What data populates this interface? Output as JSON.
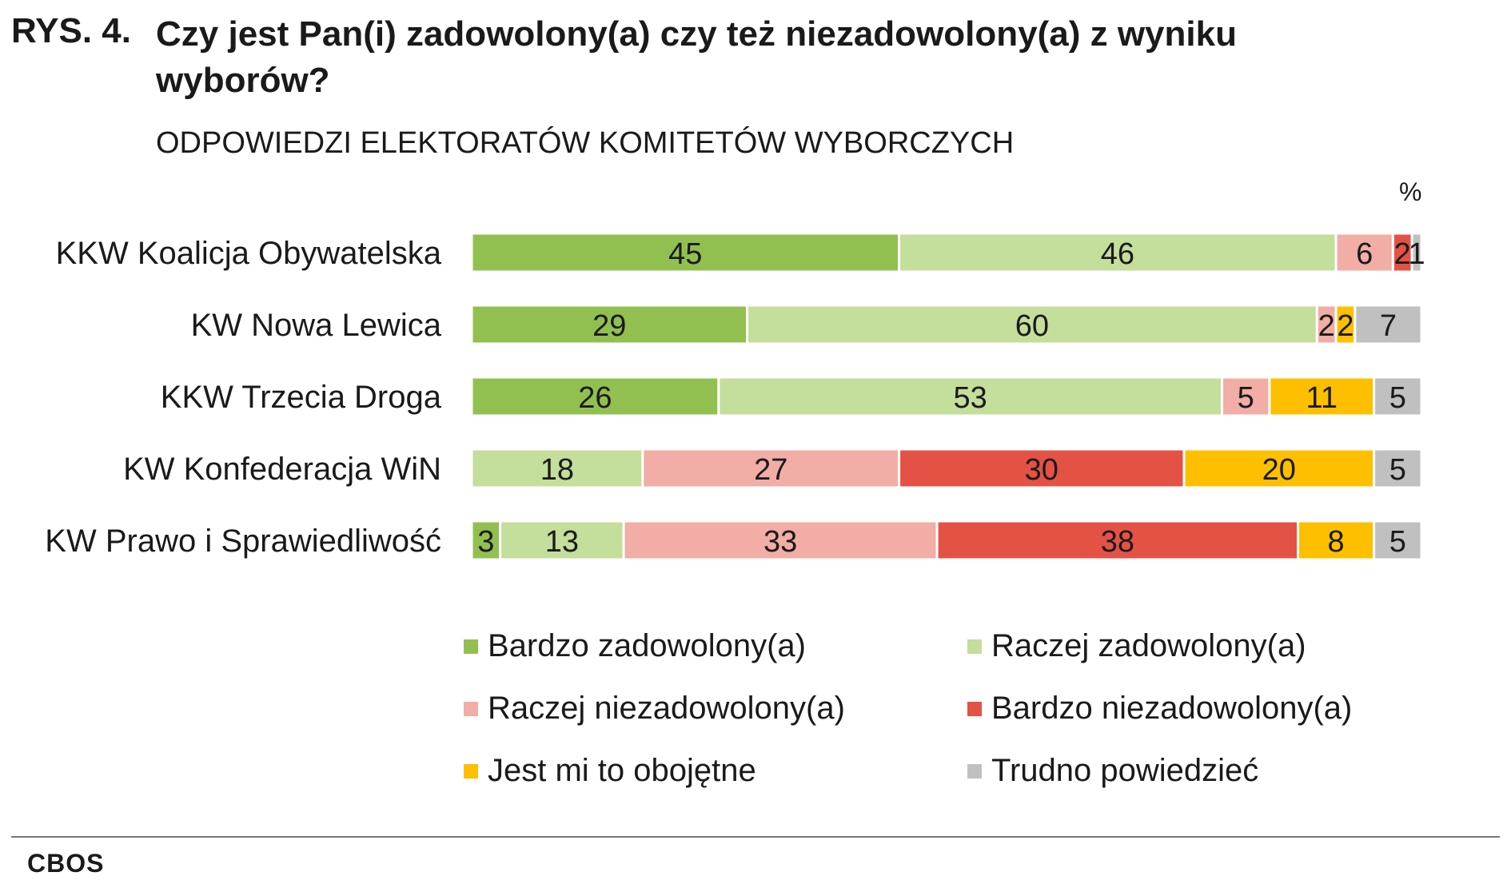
{
  "figure_label": "RYS. 4.",
  "chart_data": {
    "type": "bar",
    "orientation": "horizontal",
    "stacked": true,
    "title": "Czy jest Pan(i) zadowolony(a) czy też niezadowolony(a) z wyniku wyborów?",
    "subtitle": "ODPOWIEDZI ELEKTORATÓW KOMITETÓW WYBORCZYCH",
    "unit": "%",
    "xlim": [
      0,
      100
    ],
    "categories": [
      "KKW Koalicja Obywatelska",
      "KW Nowa Lewica",
      "KKW Trzecia Droga",
      "KW Konfederacja WiN",
      "KW Prawo i Sprawiedliwość"
    ],
    "series": [
      {
        "name": "Bardzo zadowolony(a)",
        "color": "#92c050",
        "values": [
          45,
          29,
          26,
          0,
          3
        ]
      },
      {
        "name": "Raczej zadowolony(a)",
        "color": "#c4de9b",
        "values": [
          46,
          60,
          53,
          18,
          13
        ]
      },
      {
        "name": "Raczej niezadowolony(a)",
        "color": "#f1ada6",
        "values": [
          6,
          2,
          5,
          27,
          33
        ]
      },
      {
        "name": "Bardzo niezadowolony(a)",
        "color": "#e45245",
        "values": [
          2,
          0,
          0,
          30,
          38
        ]
      },
      {
        "name": "Jest mi to obojętne",
        "color": "#fdbf00",
        "values": [
          0,
          2,
          11,
          20,
          8
        ]
      },
      {
        "name": "Trudno powiedzieć",
        "color": "#c0c0c0",
        "values": [
          1,
          7,
          5,
          5,
          5
        ]
      }
    ],
    "legend_position": "bottom"
  },
  "source": "CBOS"
}
